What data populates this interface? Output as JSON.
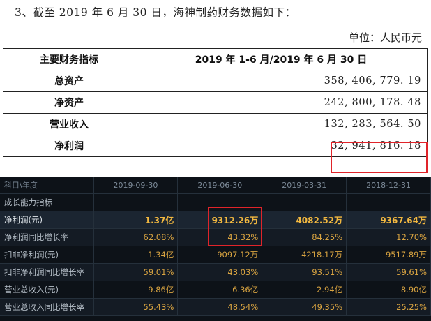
{
  "intro": "3、截至 2019 年 6 月 30 日，海神制药财务数据如下：",
  "unit": "单位：人民币元",
  "fin_table": {
    "header": [
      "主要财务指标",
      "2019 年 1-6 月/2019 年 6 月 30 日"
    ],
    "rows": [
      {
        "label": "总资产",
        "value": "358, 406, 779. 19"
      },
      {
        "label": "净资产",
        "value": "242, 800, 178. 48"
      },
      {
        "label": "营业收入",
        "value": "132, 283, 564. 50"
      },
      {
        "label": "净利润",
        "value": "32, 941, 816. 18"
      }
    ]
  },
  "quarter_table": {
    "header": [
      "科目\\年度",
      "2019-09-30",
      "2019-06-30",
      "2019-03-31",
      "2018-12-31"
    ],
    "section": "成长能力指标",
    "rows": [
      {
        "label": "净利润(元)",
        "values": [
          {
            "n": "1.37",
            "u": "亿"
          },
          {
            "n": "9312.26",
            "u": "万"
          },
          {
            "n": "4082.52",
            "u": "万"
          },
          {
            "n": "9367.64",
            "u": "万"
          }
        ]
      },
      {
        "label": "净利润同比增长率",
        "values": [
          {
            "n": "62.08%",
            "u": ""
          },
          {
            "n": "43.32%",
            "u": ""
          },
          {
            "n": "84.25%",
            "u": ""
          },
          {
            "n": "12.70%",
            "u": ""
          }
        ]
      },
      {
        "label": "扣非净利润(元)",
        "values": [
          {
            "n": "1.34",
            "u": "亿"
          },
          {
            "n": "9097.12",
            "u": "万"
          },
          {
            "n": "4218.17",
            "u": "万"
          },
          {
            "n": "9517.89",
            "u": "万"
          }
        ]
      },
      {
        "label": "扣非净利润同比增长率",
        "values": [
          {
            "n": "59.01%",
            "u": ""
          },
          {
            "n": "43.03%",
            "u": ""
          },
          {
            "n": "93.51%",
            "u": ""
          },
          {
            "n": "59.61%",
            "u": ""
          }
        ]
      },
      {
        "label": "营业总收入(元)",
        "values": [
          {
            "n": "9.86",
            "u": "亿"
          },
          {
            "n": "6.36",
            "u": "亿"
          },
          {
            "n": "2.94",
            "u": "亿"
          },
          {
            "n": "8.90",
            "u": "亿"
          }
        ]
      },
      {
        "label": "营业总收入同比增长率",
        "values": [
          {
            "n": "55.43%",
            "u": ""
          },
          {
            "n": "48.54%",
            "u": ""
          },
          {
            "n": "49.35%",
            "u": ""
          },
          {
            "n": "25.25%",
            "u": ""
          }
        ]
      }
    ]
  },
  "colors": {
    "highlight": "#e0242a",
    "value": "#d9a441",
    "dark_bg": "#0d1218"
  }
}
